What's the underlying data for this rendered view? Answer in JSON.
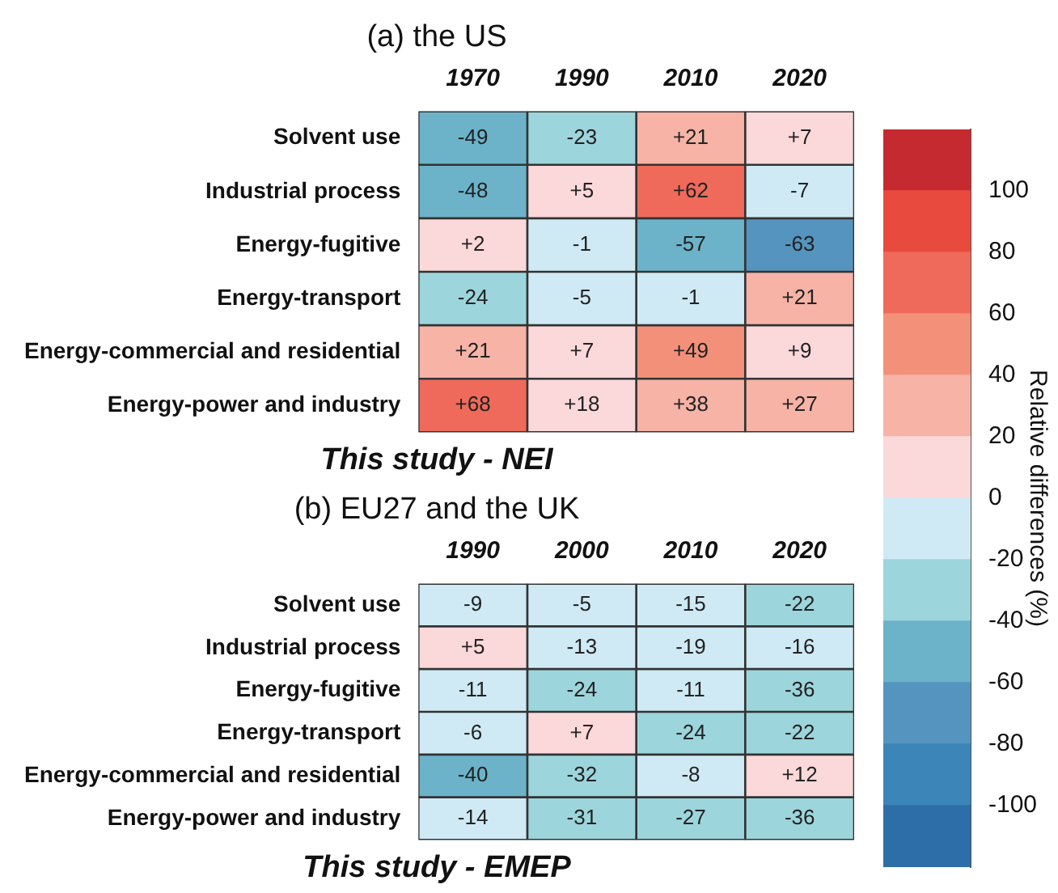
{
  "chart_data": [
    {
      "type": "heatmap",
      "title": "(a) the US",
      "xlabel": "This study - NEI",
      "clabel": "Relative differences (%)",
      "categories": [
        "1970",
        "1990",
        "2010",
        "2020"
      ],
      "y_categories": [
        "Solvent use",
        "Industrial process",
        "Energy-fugitive",
        "Energy-transport",
        "Energy-commercial and residential",
        "Energy-power and industry"
      ],
      "cells": [
        [
          -49,
          -23,
          21,
          7
        ],
        [
          -48,
          5,
          62,
          -7
        ],
        [
          2,
          -1,
          -57,
          -63
        ],
        [
          -24,
          -5,
          -1,
          21
        ],
        [
          21,
          7,
          49,
          9
        ],
        [
          68,
          18,
          38,
          27
        ]
      ],
      "cell_labels": [
        [
          "-49",
          "-23",
          "+21",
          "+7"
        ],
        [
          "-48",
          "+5",
          "+62",
          "-7"
        ],
        [
          "+2",
          "-1",
          "-57",
          "-63"
        ],
        [
          "-24",
          "-5",
          "-1",
          "+21"
        ],
        [
          "+21",
          "+7",
          "+49",
          "+9"
        ],
        [
          "+68",
          "+18",
          "+38",
          "+27"
        ]
      ],
      "clim": [
        -120,
        120
      ],
      "cticks": [
        -100,
        -80,
        -60,
        -40,
        -20,
        0,
        20,
        40,
        60,
        80,
        100
      ],
      "colors": [
        "#2e6ea8",
        "#3b85b8",
        "#5594bf",
        "#6cb3c9",
        "#9dd5dc",
        "#cfeaf4",
        "#fbd8da",
        "#f6b3a6",
        "#f2907a",
        "#ef6a5a",
        "#e84a3e",
        "#c52a30"
      ]
    },
    {
      "type": "heatmap",
      "title": "(b) EU27 and the UK",
      "xlabel": "This study - EMEP",
      "categories": [
        "1990",
        "2000",
        "2010",
        "2020"
      ],
      "y_categories": [
        "Solvent use",
        "Industrial process",
        "Energy-fugitive",
        "Energy-transport",
        "Energy-commercial and residential",
        "Energy-power and industry"
      ],
      "cells": [
        [
          -9,
          -5,
          -15,
          -22
        ],
        [
          5,
          -13,
          -19,
          -16
        ],
        [
          -11,
          -24,
          -11,
          -36
        ],
        [
          -6,
          7,
          -24,
          -22
        ],
        [
          -40,
          -32,
          -8,
          12
        ],
        [
          -14,
          -31,
          -27,
          -36
        ]
      ],
      "cell_labels": [
        [
          "-9",
          "-5",
          "-15",
          "-22"
        ],
        [
          "+5",
          "-13",
          "-19",
          "-16"
        ],
        [
          "-11",
          "-24",
          "-11",
          "-36"
        ],
        [
          "-6",
          "+7",
          "-24",
          "-22"
        ],
        [
          "-40",
          "-32",
          "-8",
          "+12"
        ],
        [
          "-14",
          "-31",
          "-27",
          "-36"
        ]
      ]
    }
  ]
}
